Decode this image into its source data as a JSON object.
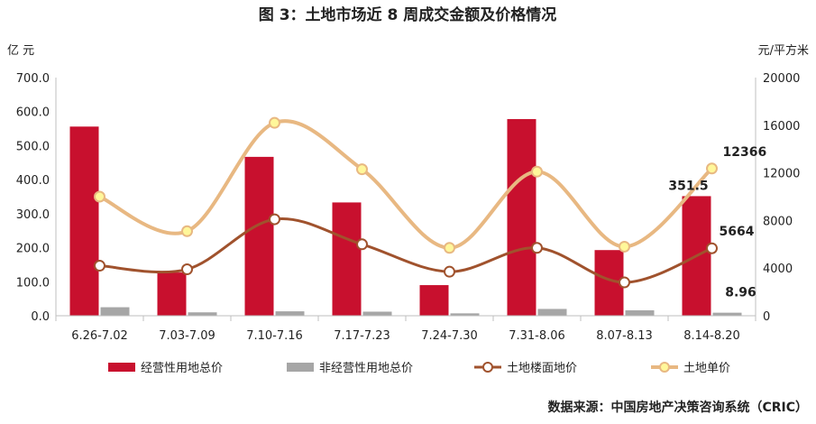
{
  "chart_data": {
    "type": "bar",
    "title": "图 3：土地市场近 8 周成交金额及价格情况",
    "ylabel_left": "亿 元",
    "ylabel_right": "元/平方米",
    "ylim_left": [
      0,
      700
    ],
    "ylim_right": [
      0,
      20000
    ],
    "left_ticks": [
      "0.0",
      "100.0",
      "200.0",
      "300.0",
      "400.0",
      "500.0",
      "600.0",
      "700.0"
    ],
    "right_ticks": [
      "0",
      "4000",
      "8000",
      "12000",
      "16000",
      "20000"
    ],
    "categories": [
      "6.26-7.02",
      "7.03-7.09",
      "7.10-7.16",
      "7.17-7.23",
      "7.24-7.30",
      "7.31-8.06",
      "8.07-8.13",
      "8.14-8.20"
    ],
    "series": [
      {
        "name": "经营性用地总价",
        "kind": "bar",
        "axis": "left",
        "color": "#c8102e",
        "values": [
          556,
          127,
          467,
          333,
          90,
          578,
          193,
          351.5
        ]
      },
      {
        "name": "非经营性用地总价",
        "kind": "bar",
        "axis": "left",
        "color": "#a6a6a6",
        "values": [
          25,
          10,
          13,
          12,
          7,
          20,
          16,
          8.96
        ]
      },
      {
        "name": "土地楼面地价",
        "kind": "line",
        "axis": "right",
        "color": "#a0522d",
        "values": [
          4200,
          3900,
          8100,
          6000,
          3700,
          5700,
          2800,
          5664
        ]
      },
      {
        "name": "土地单价",
        "kind": "line",
        "axis": "right",
        "color": "#e8b882",
        "values": [
          10000,
          7100,
          16200,
          12300,
          5700,
          12100,
          5800,
          12366
        ]
      }
    ],
    "data_labels": [
      {
        "series": 0,
        "index": 7,
        "text": "351.5"
      },
      {
        "series": 1,
        "index": 7,
        "text": "8.96"
      },
      {
        "series": 2,
        "index": 7,
        "text": "5664"
      },
      {
        "series": 3,
        "index": 7,
        "text": "12366"
      }
    ],
    "legend_position": "bottom",
    "grid": false
  },
  "source": "数据来源：中国房地产决策咨询系统（CRIC）"
}
